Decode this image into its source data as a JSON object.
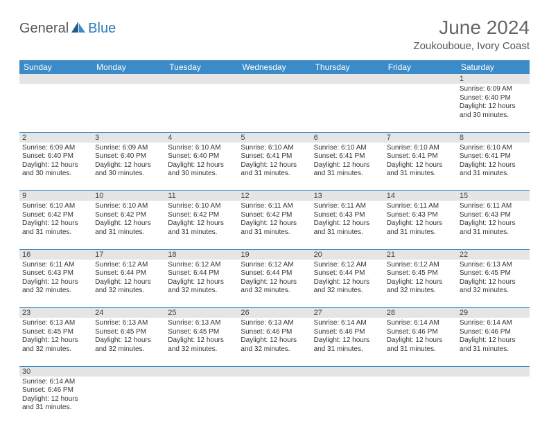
{
  "logo": {
    "general": "General",
    "blue": "Blue"
  },
  "title": "June 2024",
  "location": "Zoukouboue, Ivory Coast",
  "colors": {
    "header_bg": "#3b8bc8",
    "header_text": "#ffffff",
    "daynum_bg": "#e5e5e5",
    "row_border": "#3b8bc8",
    "text": "#333333",
    "title_text": "#666666",
    "logo_gray": "#555555",
    "logo_blue": "#2a7ab9"
  },
  "days_of_week": [
    "Sunday",
    "Monday",
    "Tuesday",
    "Wednesday",
    "Thursday",
    "Friday",
    "Saturday"
  ],
  "weeks": [
    {
      "nums": [
        "",
        "",
        "",
        "",
        "",
        "",
        "1"
      ],
      "cells": [
        null,
        null,
        null,
        null,
        null,
        null,
        {
          "sunrise": "6:09 AM",
          "sunset": "6:40 PM",
          "daylight": "12 hours and 30 minutes."
        }
      ]
    },
    {
      "nums": [
        "2",
        "3",
        "4",
        "5",
        "6",
        "7",
        "8"
      ],
      "cells": [
        {
          "sunrise": "6:09 AM",
          "sunset": "6:40 PM",
          "daylight": "12 hours and 30 minutes."
        },
        {
          "sunrise": "6:09 AM",
          "sunset": "6:40 PM",
          "daylight": "12 hours and 30 minutes."
        },
        {
          "sunrise": "6:10 AM",
          "sunset": "6:40 PM",
          "daylight": "12 hours and 30 minutes."
        },
        {
          "sunrise": "6:10 AM",
          "sunset": "6:41 PM",
          "daylight": "12 hours and 31 minutes."
        },
        {
          "sunrise": "6:10 AM",
          "sunset": "6:41 PM",
          "daylight": "12 hours and 31 minutes."
        },
        {
          "sunrise": "6:10 AM",
          "sunset": "6:41 PM",
          "daylight": "12 hours and 31 minutes."
        },
        {
          "sunrise": "6:10 AM",
          "sunset": "6:41 PM",
          "daylight": "12 hours and 31 minutes."
        }
      ]
    },
    {
      "nums": [
        "9",
        "10",
        "11",
        "12",
        "13",
        "14",
        "15"
      ],
      "cells": [
        {
          "sunrise": "6:10 AM",
          "sunset": "6:42 PM",
          "daylight": "12 hours and 31 minutes."
        },
        {
          "sunrise": "6:10 AM",
          "sunset": "6:42 PM",
          "daylight": "12 hours and 31 minutes."
        },
        {
          "sunrise": "6:10 AM",
          "sunset": "6:42 PM",
          "daylight": "12 hours and 31 minutes."
        },
        {
          "sunrise": "6:11 AM",
          "sunset": "6:42 PM",
          "daylight": "12 hours and 31 minutes."
        },
        {
          "sunrise": "6:11 AM",
          "sunset": "6:43 PM",
          "daylight": "12 hours and 31 minutes."
        },
        {
          "sunrise": "6:11 AM",
          "sunset": "6:43 PM",
          "daylight": "12 hours and 31 minutes."
        },
        {
          "sunrise": "6:11 AM",
          "sunset": "6:43 PM",
          "daylight": "12 hours and 31 minutes."
        }
      ]
    },
    {
      "nums": [
        "16",
        "17",
        "18",
        "19",
        "20",
        "21",
        "22"
      ],
      "cells": [
        {
          "sunrise": "6:11 AM",
          "sunset": "6:43 PM",
          "daylight": "12 hours and 32 minutes."
        },
        {
          "sunrise": "6:12 AM",
          "sunset": "6:44 PM",
          "daylight": "12 hours and 32 minutes."
        },
        {
          "sunrise": "6:12 AM",
          "sunset": "6:44 PM",
          "daylight": "12 hours and 32 minutes."
        },
        {
          "sunrise": "6:12 AM",
          "sunset": "6:44 PM",
          "daylight": "12 hours and 32 minutes."
        },
        {
          "sunrise": "6:12 AM",
          "sunset": "6:44 PM",
          "daylight": "12 hours and 32 minutes."
        },
        {
          "sunrise": "6:12 AM",
          "sunset": "6:45 PM",
          "daylight": "12 hours and 32 minutes."
        },
        {
          "sunrise": "6:13 AM",
          "sunset": "6:45 PM",
          "daylight": "12 hours and 32 minutes."
        }
      ]
    },
    {
      "nums": [
        "23",
        "24",
        "25",
        "26",
        "27",
        "28",
        "29"
      ],
      "cells": [
        {
          "sunrise": "6:13 AM",
          "sunset": "6:45 PM",
          "daylight": "12 hours and 32 minutes."
        },
        {
          "sunrise": "6:13 AM",
          "sunset": "6:45 PM",
          "daylight": "12 hours and 32 minutes."
        },
        {
          "sunrise": "6:13 AM",
          "sunset": "6:45 PM",
          "daylight": "12 hours and 32 minutes."
        },
        {
          "sunrise": "6:13 AM",
          "sunset": "6:46 PM",
          "daylight": "12 hours and 32 minutes."
        },
        {
          "sunrise": "6:14 AM",
          "sunset": "6:46 PM",
          "daylight": "12 hours and 31 minutes."
        },
        {
          "sunrise": "6:14 AM",
          "sunset": "6:46 PM",
          "daylight": "12 hours and 31 minutes."
        },
        {
          "sunrise": "6:14 AM",
          "sunset": "6:46 PM",
          "daylight": "12 hours and 31 minutes."
        }
      ]
    },
    {
      "nums": [
        "30",
        "",
        "",
        "",
        "",
        "",
        ""
      ],
      "cells": [
        {
          "sunrise": "6:14 AM",
          "sunset": "6:46 PM",
          "daylight": "12 hours and 31 minutes."
        },
        null,
        null,
        null,
        null,
        null,
        null
      ]
    }
  ],
  "labels": {
    "sunrise": "Sunrise:",
    "sunset": "Sunset:",
    "daylight": "Daylight:"
  }
}
